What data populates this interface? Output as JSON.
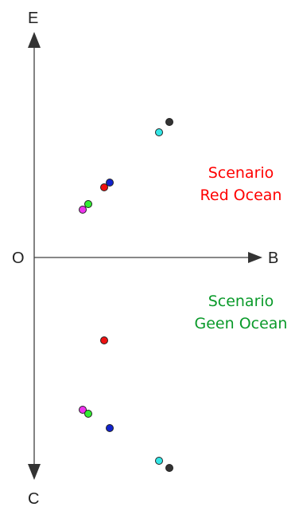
{
  "axes": {
    "top_label": "E",
    "bottom_label": "C",
    "right_label": "B",
    "origin_label": "O"
  },
  "scenarios": {
    "red": {
      "line1": "Scenario",
      "line2": "Red Ocean",
      "color": "#ff0000"
    },
    "green": {
      "line1": "Scenario",
      "line2": "Geen Ocean",
      "color": "#0a9a2a"
    }
  },
  "colors": {
    "black": "#333333",
    "cyan": "#33e6e6",
    "red": "#ee1111",
    "blue": "#1122cc",
    "green": "#33ee33",
    "magenta": "#ee33ee"
  }
}
